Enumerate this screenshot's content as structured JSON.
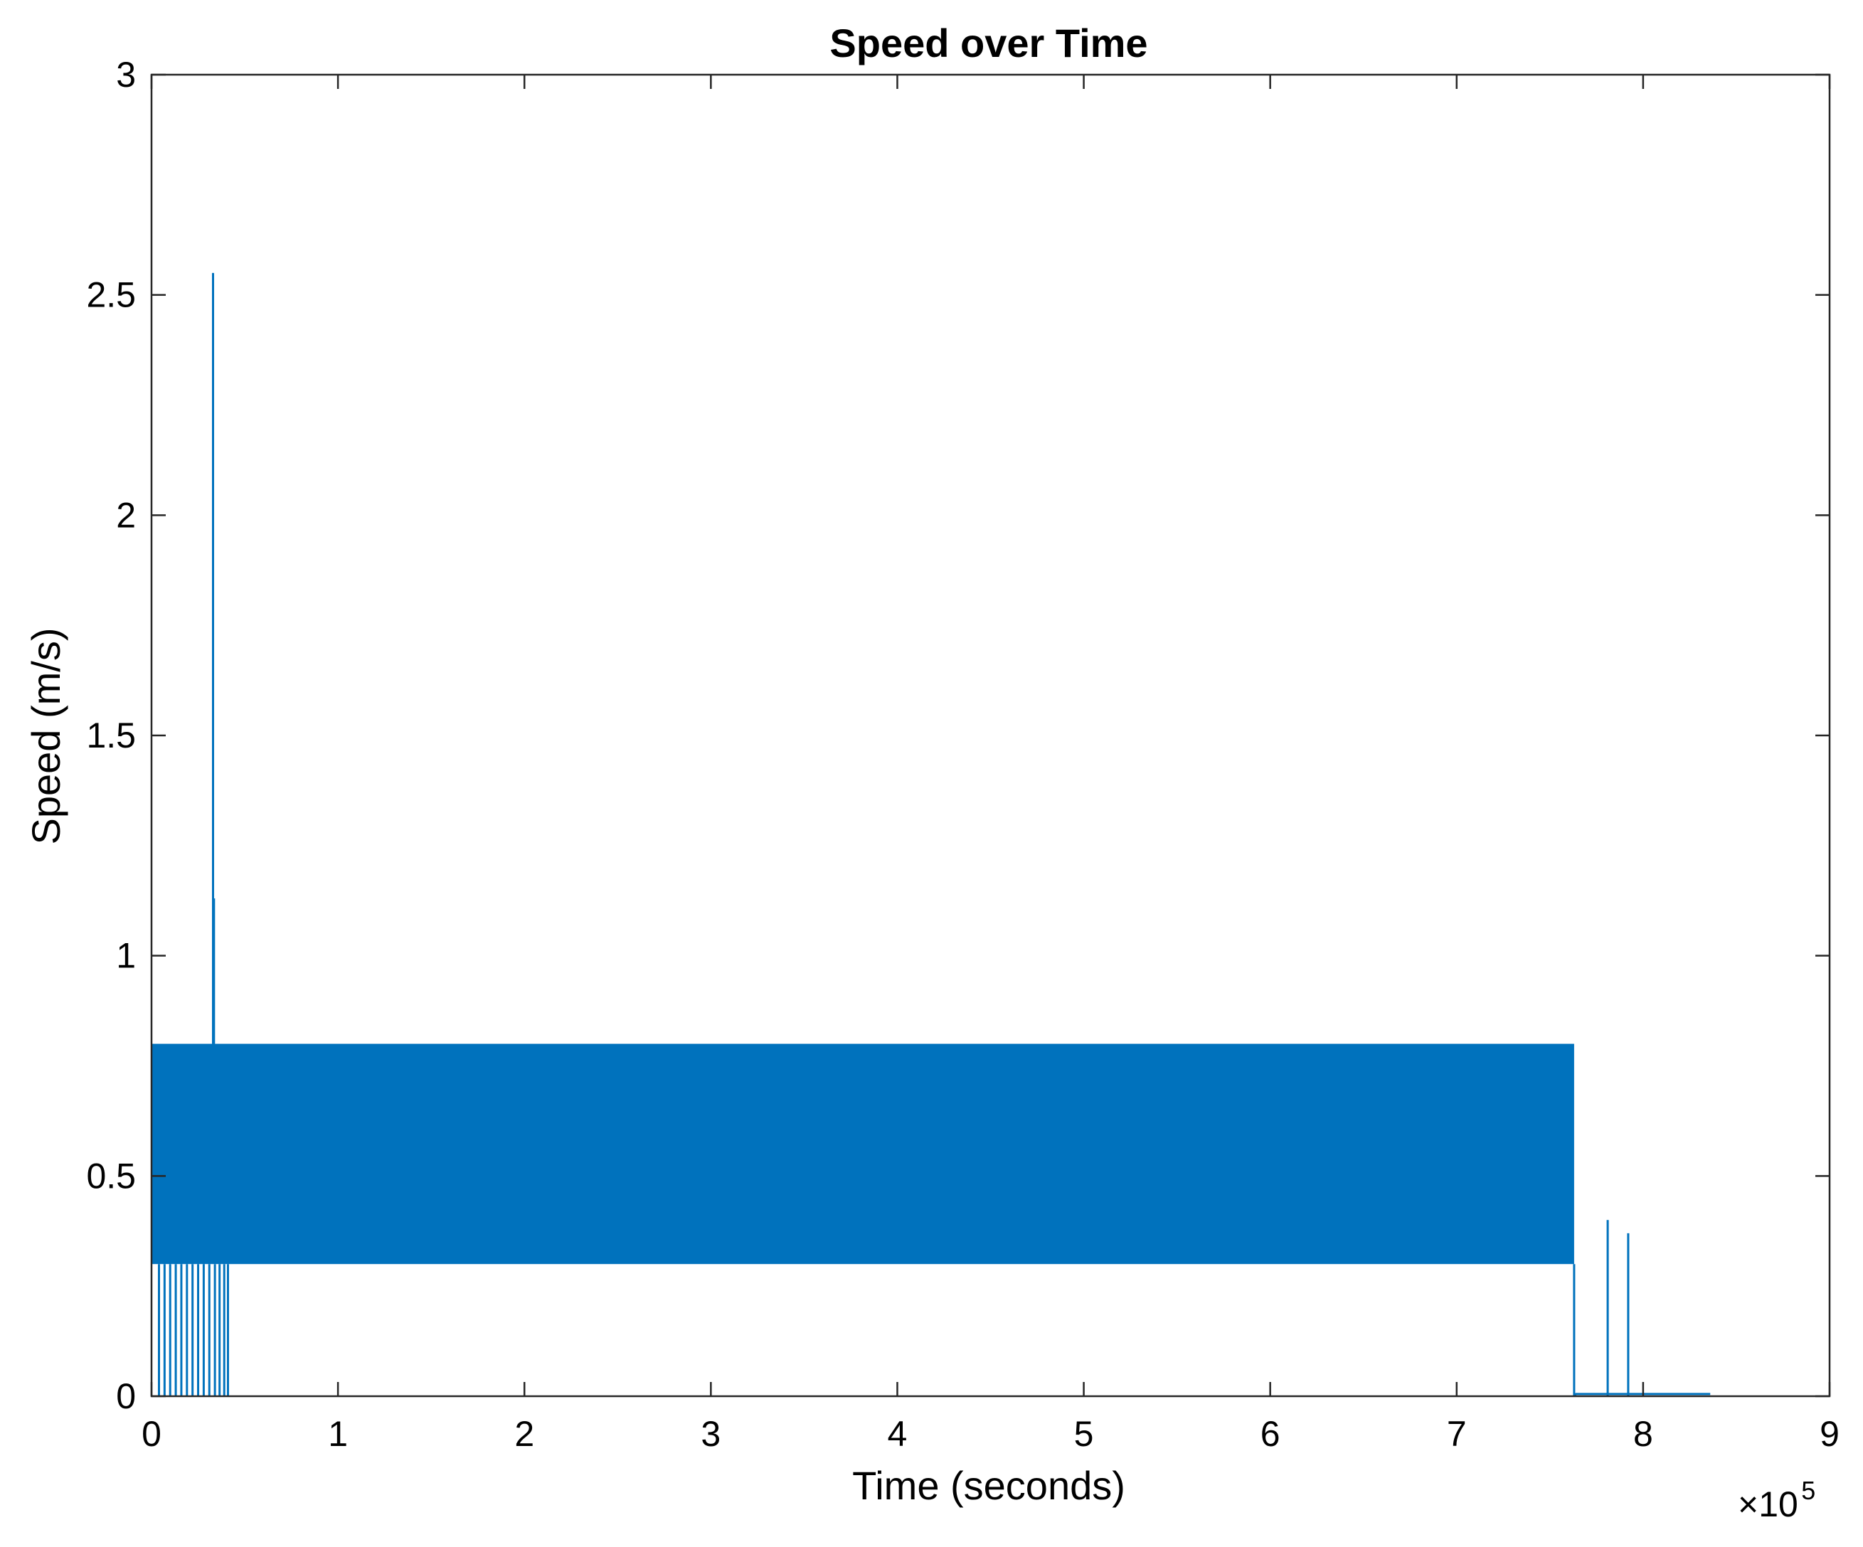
{
  "chart_data": {
    "type": "line",
    "title": "Speed over Time",
    "xlabel": "Time (seconds)",
    "ylabel": "Speed (m/s)",
    "x_exponent_label": "×10",
    "x_exponent_power": "5",
    "xlim": [
      0,
      900000
    ],
    "ylim": [
      0,
      3
    ],
    "x_ticks": [
      0,
      100000,
      200000,
      300000,
      400000,
      500000,
      600000,
      700000,
      800000,
      900000
    ],
    "x_tick_labels": [
      "0",
      "1",
      "2",
      "3",
      "4",
      "5",
      "6",
      "7",
      "8",
      "9"
    ],
    "y_ticks": [
      0,
      0.5,
      1,
      1.5,
      2,
      2.5,
      3
    ],
    "y_tick_labels": [
      "0",
      "0.5",
      "1",
      "1.5",
      "2",
      "2.5",
      "3"
    ],
    "grid": false,
    "box": true,
    "color": "#0072BD",
    "series": [
      {
        "band": {
          "x_start": 0,
          "x_end": 763000,
          "y_low": 0.3,
          "y_high": 0.8
        },
        "drops_to_zero_x": [
          4000,
          7000,
          10000,
          13000,
          16000,
          19000,
          22000,
          25000,
          28000,
          31000,
          34000,
          36500,
          39000,
          41000
        ],
        "spikes": [
          {
            "x": 33000,
            "y": 2.55
          },
          {
            "x": 33500,
            "y": 1.13
          },
          {
            "x": 781000,
            "y": 0.4
          },
          {
            "x": 792000,
            "y": 0.37
          }
        ],
        "tail": {
          "x": [
            763000,
            764000,
            782000,
            792000,
            800000,
            836000
          ],
          "y": [
            0,
            0.005,
            0.005,
            0.005,
            0.005,
            0.005
          ]
        }
      }
    ]
  }
}
